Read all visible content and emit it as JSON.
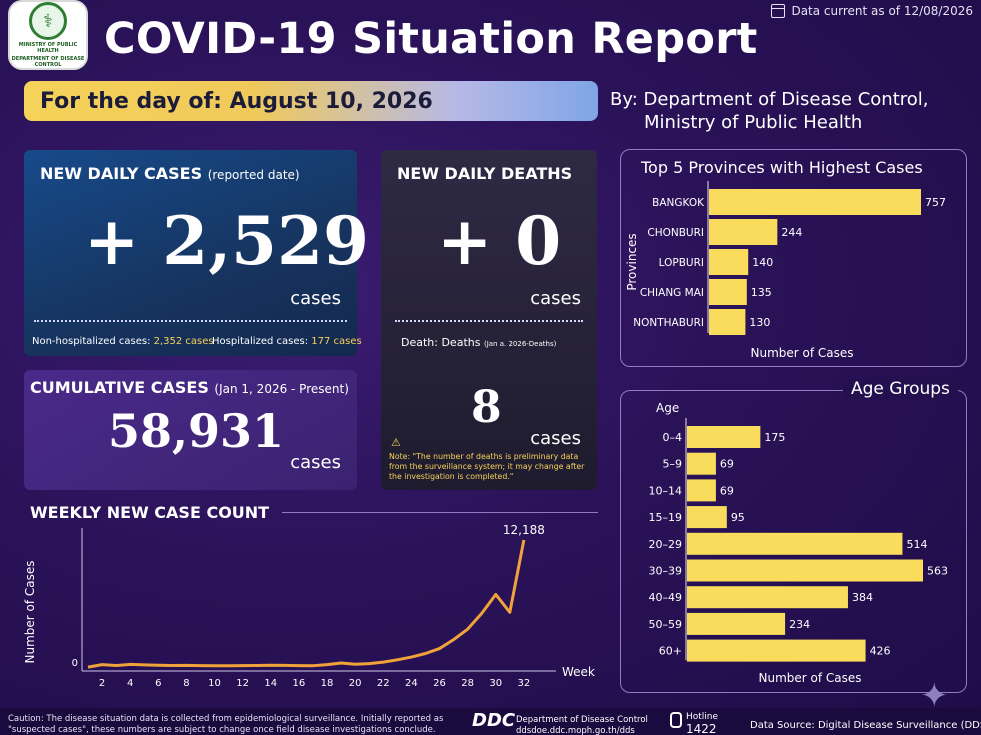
{
  "header": {
    "title": "COVID-19 Situation Report",
    "data_current": "Data current as of 12/08/2026",
    "day_of": "For the day of: August 10, 2026",
    "by_line1": "By: Department of Disease Control,",
    "by_line2": "Ministry of Public Health",
    "logo_text1": "MINISTRY OF PUBLIC HEALTH",
    "logo_text2": "DEPARTMENT OF DISEASE CONTROL"
  },
  "new_cases": {
    "title": "NEW DAILY CASES",
    "subtitle": "(reported date)",
    "value": "+ 2,529",
    "unit": "cases",
    "non_hosp_label": "Non-hospitalized cases:",
    "non_hosp_value": "2,352 cases",
    "hosp_label": "Hospitalized cases:",
    "hosp_value": "177 cases"
  },
  "new_deaths": {
    "title": "NEW DAILY DEATHS",
    "value": "+ 0",
    "unit": "cases",
    "death_label": "Death: Deaths",
    "death_sub": "(Jan a. 2026-Deaths)",
    "total": "8",
    "total_unit": "cases",
    "note": "Note: \"The number of deaths is preliminary data from the surveillance system; it may change after the investigation is completed.\""
  },
  "cumulative": {
    "title": "CUMULATIVE CASES",
    "subtitle": "(Jan 1, 2026 - Present)",
    "value": "58,931",
    "unit": "cases"
  },
  "chart_data": [
    {
      "type": "line",
      "title": "WEEKLY NEW CASE COUNT",
      "xlabel": "Week",
      "ylabel": "Number of Cases",
      "x": [
        1,
        2,
        3,
        4,
        5,
        6,
        7,
        8,
        9,
        10,
        11,
        12,
        13,
        14,
        15,
        16,
        17,
        18,
        19,
        20,
        21,
        22,
        23,
        24,
        25,
        26,
        27,
        28,
        29,
        30,
        31,
        32
      ],
      "values": [
        80,
        320,
        240,
        340,
        300,
        260,
        240,
        250,
        230,
        220,
        220,
        230,
        240,
        260,
        250,
        230,
        220,
        320,
        480,
        360,
        420,
        560,
        780,
        1040,
        1380,
        1850,
        2700,
        3700,
        5200,
        7000,
        5300,
        12188
      ],
      "xticks": [
        2,
        4,
        6,
        8,
        10,
        12,
        14,
        16,
        18,
        20,
        22,
        24,
        26,
        28,
        30,
        32
      ],
      "yticks": [
        0
      ],
      "ylim": [
        0,
        12188
      ],
      "annotation": "12,188",
      "color": "#f0a33b"
    },
    {
      "type": "bar",
      "title": "Top 5 Provinces with Highest Cases",
      "xlabel": "Number of Cases",
      "ylabel": "Provinces",
      "categories": [
        "BANGKOK",
        "CHONBURI",
        "LOPBURI",
        "CHIANG MAI",
        "NONTHABURI"
      ],
      "values": [
        757,
        244,
        140,
        135,
        130
      ],
      "color": "#f9dc5c"
    },
    {
      "type": "bar",
      "title": "Age Groups",
      "xlabel": "Number of Cases",
      "ylabel": "Age",
      "categories": [
        "0–4",
        "5–9",
        "10–14",
        "15–19",
        "20–29",
        "30–39",
        "40–49",
        "50–59",
        "60+"
      ],
      "values": [
        175,
        69,
        69,
        95,
        514,
        563,
        384,
        234,
        426
      ],
      "color": "#f9dc5c"
    }
  ],
  "footer": {
    "caption": "Caution: The disease situation data is collected from epidemiological surveillance. Initially reported as \"suspected cases\", these numbers are subject to change once field disease investigations conclude.",
    "ddc": "DDC",
    "ddc_line1": "Department of Disease Control",
    "ddc_line2": "ddsdoe.ddc.moph.go.th/dds",
    "hotline_label": "Hotline",
    "hotline_number": "1422",
    "data_source": "Data Source: Digital Disease Surveillance (DDS)"
  }
}
